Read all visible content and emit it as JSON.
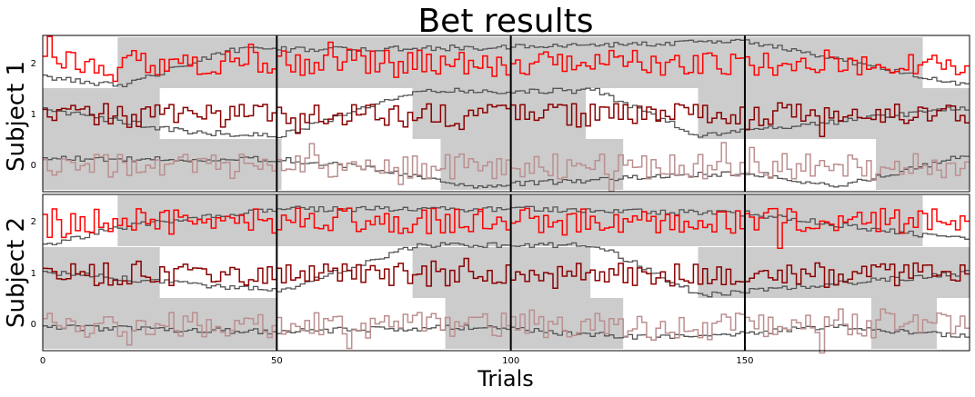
{
  "chart_data": {
    "type": "line",
    "title": "Bet results",
    "xlabel": "Trials",
    "xlim": [
      0,
      198
    ],
    "x_ticks": [
      0,
      50,
      100,
      150
    ],
    "y_ticks": [
      0,
      1,
      2
    ],
    "block_boundaries": [
      50,
      100,
      150
    ],
    "line_colors": {
      "bet2": "#ff0000",
      "bet1": "#8b0000",
      "bet0": "#bc8f8f",
      "belief": "#555555",
      "shade": "#cccccc"
    },
    "panels": [
      {
        "ylabel": "Subject 1",
        "shaded_segments": [
          {
            "level": 0,
            "x": [
              0,
              51
            ]
          },
          {
            "level": 0,
            "x": [
              85,
              100
            ]
          },
          {
            "level": 0,
            "x": [
              100,
              124
            ]
          },
          {
            "level": 0,
            "x": [
              178,
              198
            ]
          },
          {
            "level": 1,
            "x": [
              0,
              25
            ]
          },
          {
            "level": 1,
            "x": [
              79,
              100
            ]
          },
          {
            "level": 1,
            "x": [
              100,
              116
            ]
          },
          {
            "level": 1,
            "x": [
              140,
              198
            ]
          },
          {
            "level": 2,
            "x": [
              16,
              50
            ]
          },
          {
            "level": 2,
            "x": [
              50,
              100
            ]
          },
          {
            "level": 2,
            "x": [
              100,
              150
            ]
          },
          {
            "level": 2,
            "x": [
              150,
              188
            ]
          }
        ]
      },
      {
        "ylabel": "Subject 2",
        "shaded_segments": [
          {
            "level": 0,
            "x": [
              0,
              50
            ]
          },
          {
            "level": 0,
            "x": [
              86,
              100
            ]
          },
          {
            "level": 0,
            "x": [
              100,
              124
            ]
          },
          {
            "level": 0,
            "x": [
              177,
              191
            ]
          },
          {
            "level": 1,
            "x": [
              0,
              25
            ]
          },
          {
            "level": 1,
            "x": [
              79,
              100
            ]
          },
          {
            "level": 1,
            "x": [
              100,
              117
            ]
          },
          {
            "level": 1,
            "x": [
              140,
              198
            ]
          },
          {
            "level": 2,
            "x": [
              16,
              50
            ]
          },
          {
            "level": 2,
            "x": [
              50,
              100
            ]
          },
          {
            "level": 2,
            "x": [
              100,
              150
            ]
          },
          {
            "level": 2,
            "x": [
              150,
              188
            ]
          }
        ]
      }
    ]
  }
}
